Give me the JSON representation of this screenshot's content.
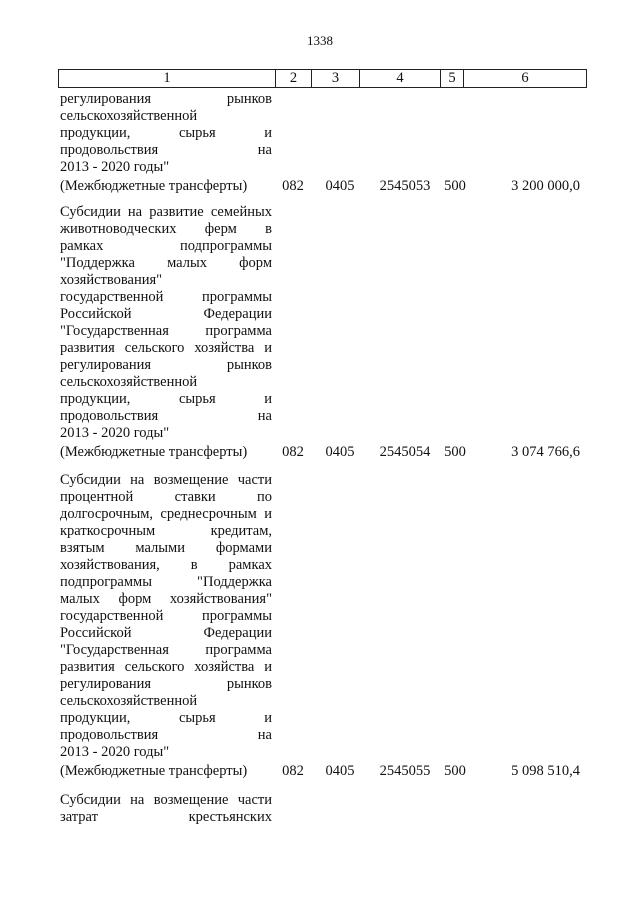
{
  "page_number": "1338",
  "header": [
    "1",
    "2",
    "3",
    "4",
    "5",
    "6"
  ],
  "rows": [
    {
      "lines": [
        "регулирования рынков",
        "сельскохозяйственной",
        "продукции, сырья и",
        "продовольствия на",
        "2013 - 2020 годы\""
      ],
      "label": "(Межбюджетные трансферты)",
      "c2": "082",
      "c3": "0405",
      "c4": "2545053",
      "c5": "500",
      "c6": "3 200 000,0"
    },
    {
      "lines": [
        "Субсидии на развитие семейных",
        "животноводческих ферм в",
        "рамках подпрограммы",
        "\"Поддержка малых форм",
        "хозяйствования\"",
        "государственной программы",
        "Российской Федерации",
        "\"Государственная программа",
        "развития сельского хозяйства и",
        "регулирования рынков",
        "сельскохозяйственной",
        "продукции, сырья и",
        "продовольствия на",
        "2013 - 2020 годы\""
      ],
      "label": "(Межбюджетные трансферты)",
      "c2": "082",
      "c3": "0405",
      "c4": "2545054",
      "c5": "500",
      "c6": "3 074 766,6"
    },
    {
      "lines": [
        "Субсидии на возмещение части",
        "процентной ставки по",
        "долгосрочным, среднесрочным и",
        "краткосрочным кредитам,",
        "взятым малыми формами",
        "хозяйствования, в рамках",
        "подпрограммы \"Поддержка",
        "малых форм хозяйствования\"",
        "государственной программы",
        "Российской Федерации",
        "\"Государственная программа",
        "развития сельского хозяйства и",
        "регулирования рынков",
        "сельскохозяйственной",
        "продукции, сырья и",
        "продовольствия на",
        "2013 - 2020 годы\""
      ],
      "label": "(Межбюджетные трансферты)",
      "c2": "082",
      "c3": "0405",
      "c4": "2545055",
      "c5": "500",
      "c6": "5 098 510,4"
    },
    {
      "lines": [
        "Субсидии на возмещение части",
        "затрат крестьянских"
      ]
    }
  ]
}
